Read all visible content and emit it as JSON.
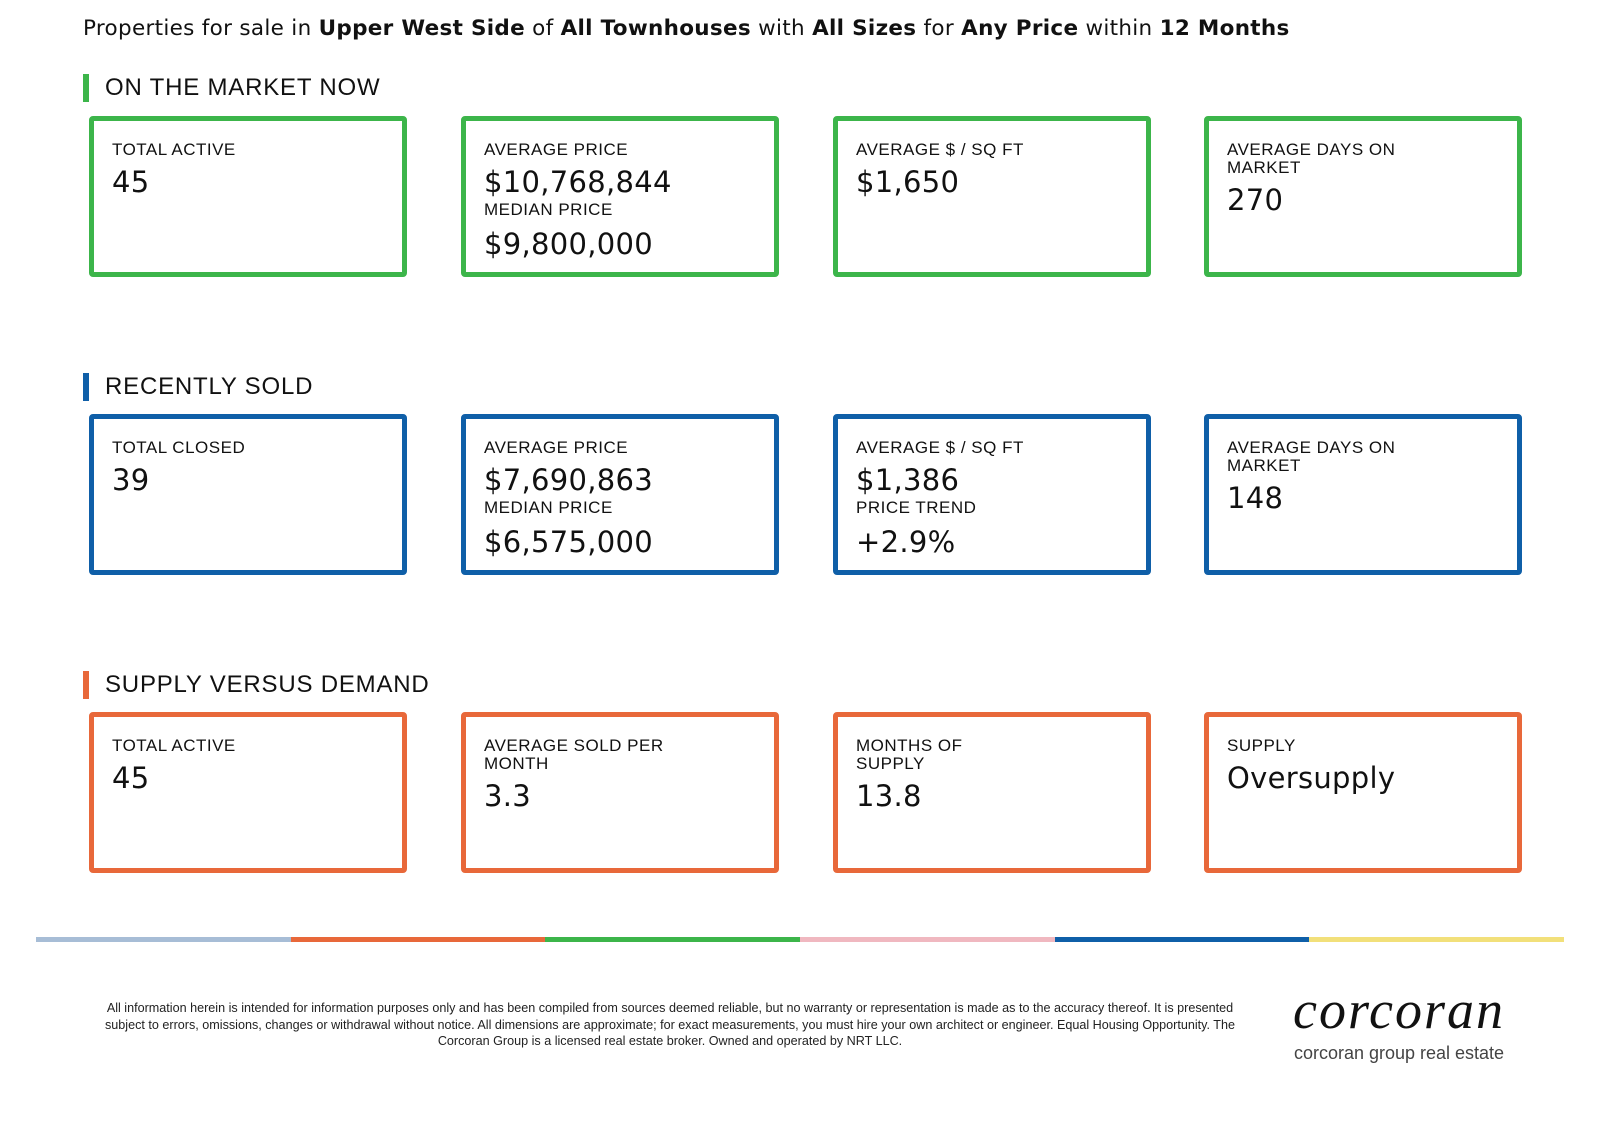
{
  "header": {
    "prefix": "Properties for sale in",
    "neighborhood": "Upper West Side",
    "of": "of",
    "property_type": "All Townhouses",
    "with": "with",
    "size": "All Sizes",
    "for": "for",
    "price": "Any Price",
    "within": "within",
    "period": "12 Months"
  },
  "colors": {
    "green": "#3cb54a",
    "blue": "#0f5fa8",
    "orange": "#e8683a",
    "strip": [
      "#a7bdd6",
      "#e8683a",
      "#3cb54a",
      "#f0b8c0",
      "#0f5fa8",
      "#f2e07a"
    ]
  },
  "sections": {
    "market": {
      "title": "ON THE MARKET NOW",
      "total_active_label": "TOTAL ACTIVE",
      "total_active_value": "45",
      "avg_price_label": "AVERAGE PRICE",
      "avg_price_value": "$10,768,844",
      "median_price_label": "MEDIAN PRICE",
      "median_price_value": "$9,800,000",
      "avg_ppsf_label": "AVERAGE $ / SQ FT",
      "avg_ppsf_value": "$1,650",
      "avg_dom_label": "AVERAGE DAYS ON MARKET",
      "avg_dom_value": "270"
    },
    "sold": {
      "title": "RECENTLY SOLD",
      "total_closed_label": "TOTAL CLOSED",
      "total_closed_value": "39",
      "avg_price_label": "AVERAGE PRICE",
      "avg_price_value": "$7,690,863",
      "median_price_label": "MEDIAN PRICE",
      "median_price_value": "$6,575,000",
      "avg_ppsf_label": "AVERAGE $ / SQ FT",
      "avg_ppsf_value": "$1,386",
      "price_trend_label": "PRICE TREND",
      "price_trend_value": "+2.9%",
      "avg_dom_label": "AVERAGE DAYS ON MARKET",
      "avg_dom_value": "148"
    },
    "supply": {
      "title": "SUPPLY VERSUS DEMAND",
      "total_active_label": "TOTAL ACTIVE",
      "total_active_value": "45",
      "avg_sold_label": "AVERAGE SOLD PER MONTH",
      "avg_sold_value": "3.3",
      "months_supply_label": "MONTHS OF SUPPLY",
      "months_supply_value": "13.8",
      "supply_label": "SUPPLY",
      "supply_value": "Oversupply"
    }
  },
  "footer": {
    "disclaimer": "All information herein is intended for information purposes only and has been compiled from sources deemed reliable, but no warranty or representation is made as to the accuracy thereof. It is presented subject to errors, omissions, changes or withdrawal without notice. All dimensions are approximate; for exact measurements, you must hire your own architect or engineer. Equal Housing Opportunity. The Corcoran Group is a licensed real estate broker. Owned and operated by NRT LLC.",
    "logo_text": "corcoran",
    "logo_subtitle": "corcoran group real estate"
  }
}
